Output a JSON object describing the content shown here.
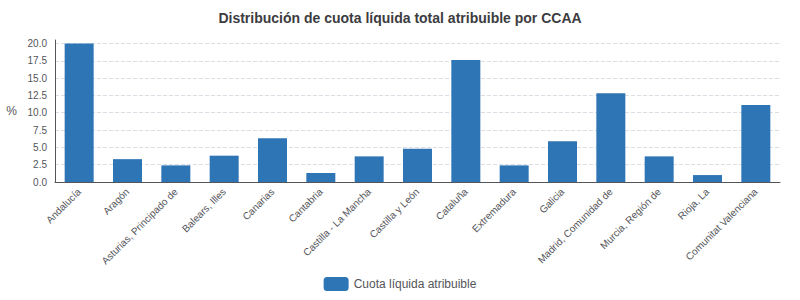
{
  "chart_data": {
    "type": "bar",
    "title": "Distribución de cuota líquida total atribuible por CCAA",
    "ylabel": "%",
    "categories": [
      "Andalucía",
      "Aragón",
      "Asturias, Principado de",
      "Balears, Illes",
      "Canarias",
      "Cantabria",
      "Castilla - La Mancha",
      "Castilla y León",
      "Cataluña",
      "Extremadura",
      "Galicia",
      "Madrid, Comunidad de",
      "Murcia, Región de",
      "Rioja, La",
      "Comunitat Valenciana"
    ],
    "series": [
      {
        "name": "Cuota líquida atribuible",
        "color": "#2e75b6",
        "values": [
          20.0,
          3.3,
          2.4,
          3.8,
          6.3,
          1.3,
          3.7,
          4.8,
          17.6,
          2.4,
          5.9,
          12.8,
          3.7,
          1.0,
          11.1
        ]
      }
    ],
    "ylim": [
      0,
      20.5
    ],
    "yticks": [
      {
        "value": 0,
        "label": "0.0"
      },
      2.5,
      {
        "value": 5,
        "label": "5.0"
      },
      7.5,
      {
        "value": 10,
        "label": "10.0"
      },
      12.5,
      {
        "value": 15,
        "label": "15.0"
      },
      17.5,
      {
        "value": 20,
        "label": "20.0"
      }
    ],
    "grid": true,
    "legend": "bottom"
  }
}
